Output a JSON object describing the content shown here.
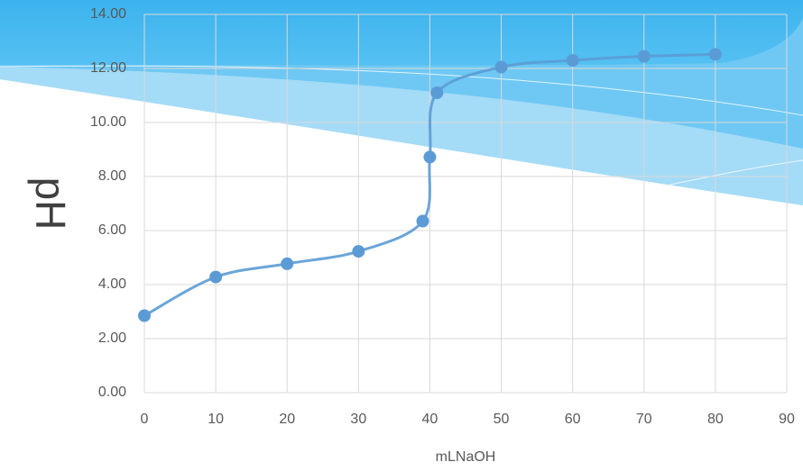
{
  "chart_data": {
    "type": "line",
    "smooth": true,
    "grid": true,
    "x_label": "mLNaOH",
    "y_label": "pH",
    "xlim": [
      0,
      90
    ],
    "xticks": [
      0,
      10,
      20,
      30,
      40,
      50,
      60,
      70,
      80,
      90
    ],
    "ylim": [
      0,
      14
    ],
    "yticks": [
      {
        "value": 0,
        "label": "0.00"
      },
      {
        "value": 2,
        "label": "2.00"
      },
      {
        "value": 4,
        "label": "4.00"
      },
      {
        "value": 6,
        "label": "6.00"
      },
      {
        "value": 8,
        "label": "8.00"
      },
      {
        "value": 10,
        "label": "10.00"
      },
      {
        "value": 12,
        "label": "12.00"
      },
      {
        "value": 14,
        "label": "14.00"
      }
    ],
    "x": [
      0,
      10,
      20,
      30,
      39,
      40,
      41,
      50,
      60,
      70,
      80
    ],
    "series": [
      {
        "color": "#5b9bd5",
        "values": [
          2.85,
          4.28,
          4.77,
          5.23,
          6.35,
          8.72,
          11.1,
          12.05,
          12.3,
          12.45,
          12.52
        ]
      }
    ]
  }
}
